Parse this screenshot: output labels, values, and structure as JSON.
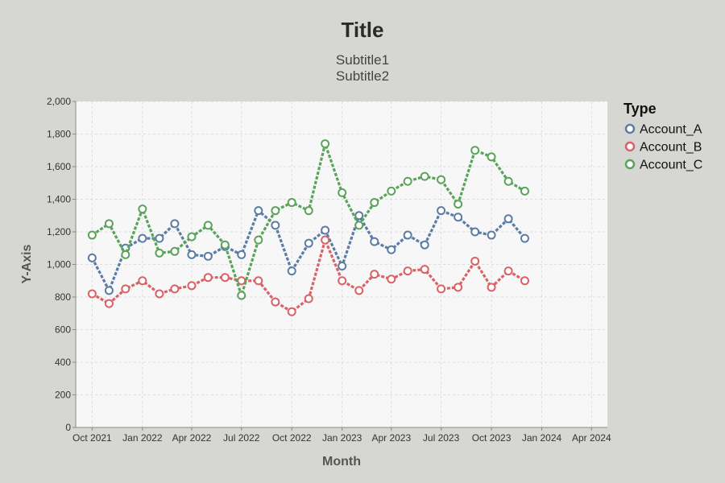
{
  "chart_data": {
    "type": "line",
    "title": "Title",
    "subtitles": [
      "Subtitle1",
      "Subtitle2"
    ],
    "xlabel": "Month",
    "ylabel": "Y-Axis",
    "legend_title": "Type",
    "legend_position": "right",
    "grid": true,
    "ylim": [
      0,
      2000
    ],
    "y_ticks": [
      0,
      200,
      400,
      600,
      800,
      1000,
      1200,
      1400,
      1600,
      1800,
      2000
    ],
    "y_tick_labels": [
      "0",
      "200",
      "400",
      "600",
      "800",
      "1,000",
      "1,200",
      "1,400",
      "1,600",
      "1,800",
      "2,000"
    ],
    "x_ticks": [
      "2021-10-01",
      "2022-01-01",
      "2022-04-01",
      "2022-07-01",
      "2022-10-01",
      "2023-01-01",
      "2023-04-01",
      "2023-07-01",
      "2023-10-01",
      "2024-01-01",
      "2024-04-01"
    ],
    "x_tick_labels": [
      "Oct 2021",
      "Jan 2022",
      "Apr 2022",
      "Jul 2022",
      "Oct 2022",
      "Jan 2023",
      "Apr 2023",
      "Jul 2023",
      "Oct 2023",
      "Jan 2024",
      "Apr 2024"
    ],
    "xlim": [
      "2021-09-01",
      "2024-04-30"
    ],
    "x": [
      "2021-10-01",
      "2021-11-01",
      "2021-12-01",
      "2022-01-01",
      "2022-02-01",
      "2022-03-01",
      "2022-04-01",
      "2022-05-01",
      "2022-06-01",
      "2022-07-01",
      "2022-08-01",
      "2022-09-01",
      "2022-10-01",
      "2022-11-01",
      "2022-12-01",
      "2023-01-01",
      "2023-02-01",
      "2023-03-01",
      "2023-04-01",
      "2023-05-01",
      "2023-06-01",
      "2023-07-01",
      "2023-08-01",
      "2023-09-01",
      "2023-10-01",
      "2023-11-01",
      "2023-12-01"
    ],
    "series": [
      {
        "name": "Account_A",
        "color": "#5b7ca6",
        "values": [
          1040,
          840,
          1100,
          1160,
          1160,
          1250,
          1060,
          1050,
          1110,
          1060,
          1330,
          1240,
          960,
          1130,
          1210,
          990,
          1300,
          1140,
          1090,
          1180,
          1120,
          1330,
          1290,
          1200,
          1180,
          1280,
          1160
        ]
      },
      {
        "name": "Account_B",
        "color": "#d96266",
        "values": [
          820,
          760,
          850,
          900,
          820,
          850,
          870,
          920,
          920,
          900,
          900,
          770,
          710,
          790,
          1150,
          900,
          840,
          940,
          910,
          960,
          970,
          850,
          860,
          1020,
          860,
          960,
          900
        ]
      },
      {
        "name": "Account_C",
        "color": "#5ba35a",
        "values": [
          1180,
          1250,
          1060,
          1340,
          1070,
          1080,
          1170,
          1240,
          1120,
          810,
          1150,
          1330,
          1380,
          1330,
          1740,
          1440,
          1240,
          1380,
          1450,
          1510,
          1540,
          1520,
          1370,
          1700,
          1660,
          1510,
          1450
        ]
      }
    ]
  }
}
